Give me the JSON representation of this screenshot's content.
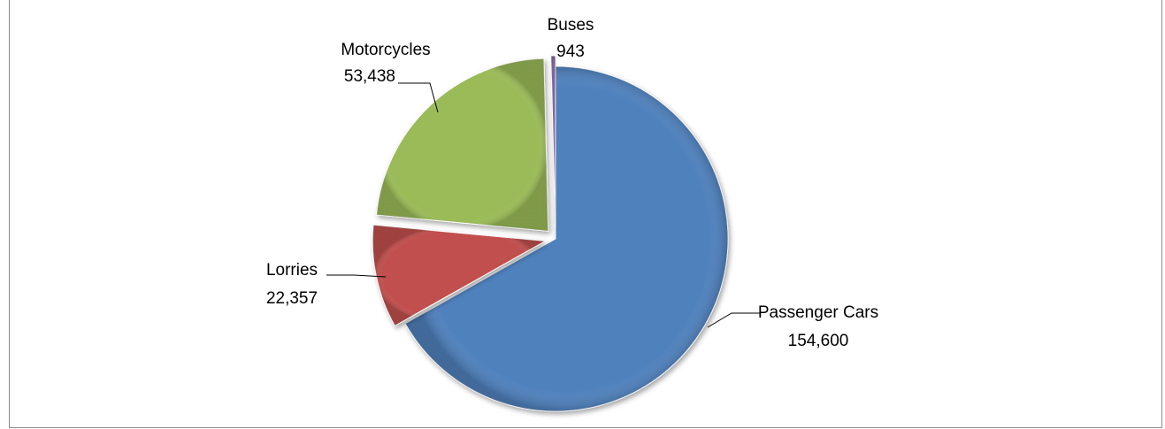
{
  "chart_data": {
    "type": "pie",
    "title": "",
    "slices": [
      {
        "name": "Passenger Cars",
        "value": 154600,
        "value_label": "154,600",
        "color": "#4f81bd",
        "exploded": false
      },
      {
        "name": "Lorries",
        "value": 22357,
        "value_label": "22,357",
        "color": "#c0504d",
        "exploded": true
      },
      {
        "name": "Motorcycles",
        "value": 53438,
        "value_label": "53,438",
        "color": "#9bbb59",
        "exploded": true
      },
      {
        "name": "Buses",
        "value": 943,
        "value_label": "943",
        "color": "#8064a2",
        "exploded": true
      }
    ],
    "legend": "none",
    "style": "3d-bevel"
  }
}
